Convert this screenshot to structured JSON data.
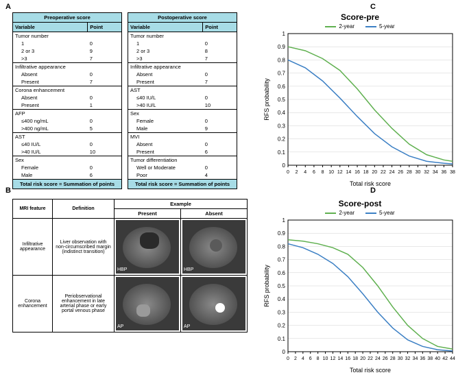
{
  "panels": {
    "a": "A",
    "b": "B",
    "c": "C",
    "d": "D"
  },
  "preop": {
    "title": "Preoperative score",
    "cols": {
      "var": "Variable",
      "pt": "Point"
    },
    "rows": [
      {
        "label": "Tumor number",
        "group": true,
        "pt": ""
      },
      {
        "label": "1",
        "indent": true,
        "pt": "0"
      },
      {
        "label": "2 or 3",
        "indent": true,
        "pt": "9"
      },
      {
        "label": ">3",
        "indent": true,
        "pt": "7"
      },
      {
        "label": "Infiltrative appearance",
        "group": true,
        "pt": ""
      },
      {
        "label": "Absent",
        "indent": true,
        "pt": "0"
      },
      {
        "label": "Present",
        "indent": true,
        "pt": "7"
      },
      {
        "label": "Corona enhancement",
        "group": true,
        "pt": ""
      },
      {
        "label": "Absent",
        "indent": true,
        "pt": "0"
      },
      {
        "label": "Present",
        "indent": true,
        "pt": "1"
      },
      {
        "label": "AFP",
        "group": true,
        "pt": ""
      },
      {
        "label": "≤400 ng/mL",
        "indent": true,
        "pt": "0"
      },
      {
        "label": ">400 ng/mL",
        "indent": true,
        "pt": "5"
      },
      {
        "label": "AST",
        "group": true,
        "pt": ""
      },
      {
        "label": "≤40 IU/L",
        "indent": true,
        "pt": "0"
      },
      {
        "label": ">40 IU/L",
        "indent": true,
        "pt": "10"
      },
      {
        "label": "Sex",
        "group": true,
        "pt": ""
      },
      {
        "label": "Female",
        "indent": true,
        "pt": "0"
      },
      {
        "label": "Male",
        "indent": true,
        "pt": "6"
      }
    ],
    "footer": "Total risk score = Summation of points"
  },
  "postop": {
    "title": "Postoperative score",
    "cols": {
      "var": "Variable",
      "pt": "Point"
    },
    "rows": [
      {
        "label": "Tumor number",
        "group": true,
        "pt": ""
      },
      {
        "label": "1",
        "indent": true,
        "pt": "0"
      },
      {
        "label": "2 or 3",
        "indent": true,
        "pt": "8"
      },
      {
        "label": ">3",
        "indent": true,
        "pt": "7"
      },
      {
        "label": "Infiltrative appearance",
        "group": true,
        "pt": ""
      },
      {
        "label": "Absent",
        "indent": true,
        "pt": "0"
      },
      {
        "label": "Present",
        "indent": true,
        "pt": "7"
      },
      {
        "label": "AST",
        "group": true,
        "pt": ""
      },
      {
        "label": "≤40 IU/L",
        "indent": true,
        "pt": "0"
      },
      {
        "label": ">40 IU/L",
        "indent": true,
        "pt": "10"
      },
      {
        "label": "Sex",
        "group": true,
        "pt": ""
      },
      {
        "label": "Female",
        "indent": true,
        "pt": "0"
      },
      {
        "label": "Male",
        "indent": true,
        "pt": "9"
      },
      {
        "label": "MVI",
        "group": true,
        "pt": ""
      },
      {
        "label": "Absent",
        "indent": true,
        "pt": "0"
      },
      {
        "label": "Present",
        "indent": true,
        "pt": "6"
      },
      {
        "label": "Tumor differentiation",
        "group": true,
        "pt": ""
      },
      {
        "label": "Well or Moderate",
        "indent": true,
        "pt": "0"
      },
      {
        "label": "Poor",
        "indent": true,
        "pt": "4"
      }
    ],
    "footer": "Total risk score = Summation of points"
  },
  "panelB": {
    "headers": {
      "feature": "MRI feature",
      "def": "Definition",
      "example": "Example",
      "present": "Present",
      "absent": "Absent"
    },
    "rows": [
      {
        "feature": "Infiltrative appearance",
        "def": "Liver observation with non-circumscribed margin (indistinct transition)",
        "phase": "HBP"
      },
      {
        "feature": "Corona enhancement",
        "def": "Periobservational enhancement in late arterial phase or early portal venous phase",
        "phase": "AP"
      }
    ]
  },
  "chartC": {
    "title": "Score-pre",
    "ylabel": "RFS probability",
    "xlabel": "Total risk score",
    "legend": {
      "a": "2-year",
      "b": "5-year"
    },
    "colors": {
      "a": "#5fb04f",
      "b": "#3b7fc4",
      "grid": "#d0d0d0",
      "axis": "#000"
    },
    "xlim": [
      0,
      38
    ],
    "xstep": 2,
    "ylim": [
      0,
      1
    ],
    "ystep": 0.1,
    "series_a": [
      [
        0,
        0.9
      ],
      [
        4,
        0.87
      ],
      [
        8,
        0.81
      ],
      [
        12,
        0.72
      ],
      [
        16,
        0.58
      ],
      [
        20,
        0.42
      ],
      [
        24,
        0.28
      ],
      [
        28,
        0.16
      ],
      [
        32,
        0.08
      ],
      [
        36,
        0.04
      ],
      [
        38,
        0.03
      ]
    ],
    "series_b": [
      [
        0,
        0.8
      ],
      [
        4,
        0.74
      ],
      [
        8,
        0.64
      ],
      [
        12,
        0.51
      ],
      [
        16,
        0.37
      ],
      [
        20,
        0.24
      ],
      [
        24,
        0.14
      ],
      [
        28,
        0.07
      ],
      [
        32,
        0.03
      ],
      [
        36,
        0.015
      ],
      [
        38,
        0.01
      ]
    ]
  },
  "chartD": {
    "title": "Score-post",
    "ylabel": "RFS probability",
    "xlabel": "Total risk score",
    "legend": {
      "a": "2-year",
      "b": "5-year"
    },
    "colors": {
      "a": "#5fb04f",
      "b": "#3b7fc4",
      "grid": "#d0d0d0",
      "axis": "#000"
    },
    "xlim": [
      0,
      44
    ],
    "xstep": 2,
    "ylim": [
      0,
      1
    ],
    "ystep": 0.1,
    "series_a": [
      [
        0,
        0.85
      ],
      [
        4,
        0.84
      ],
      [
        8,
        0.82
      ],
      [
        12,
        0.79
      ],
      [
        16,
        0.74
      ],
      [
        20,
        0.64
      ],
      [
        24,
        0.5
      ],
      [
        28,
        0.34
      ],
      [
        32,
        0.2
      ],
      [
        36,
        0.1
      ],
      [
        40,
        0.04
      ],
      [
        44,
        0.02
      ]
    ],
    "series_b": [
      [
        0,
        0.82
      ],
      [
        4,
        0.79
      ],
      [
        8,
        0.74
      ],
      [
        12,
        0.67
      ],
      [
        16,
        0.57
      ],
      [
        20,
        0.44
      ],
      [
        24,
        0.3
      ],
      [
        28,
        0.18
      ],
      [
        32,
        0.09
      ],
      [
        36,
        0.04
      ],
      [
        40,
        0.015
      ],
      [
        44,
        0.005
      ]
    ]
  }
}
